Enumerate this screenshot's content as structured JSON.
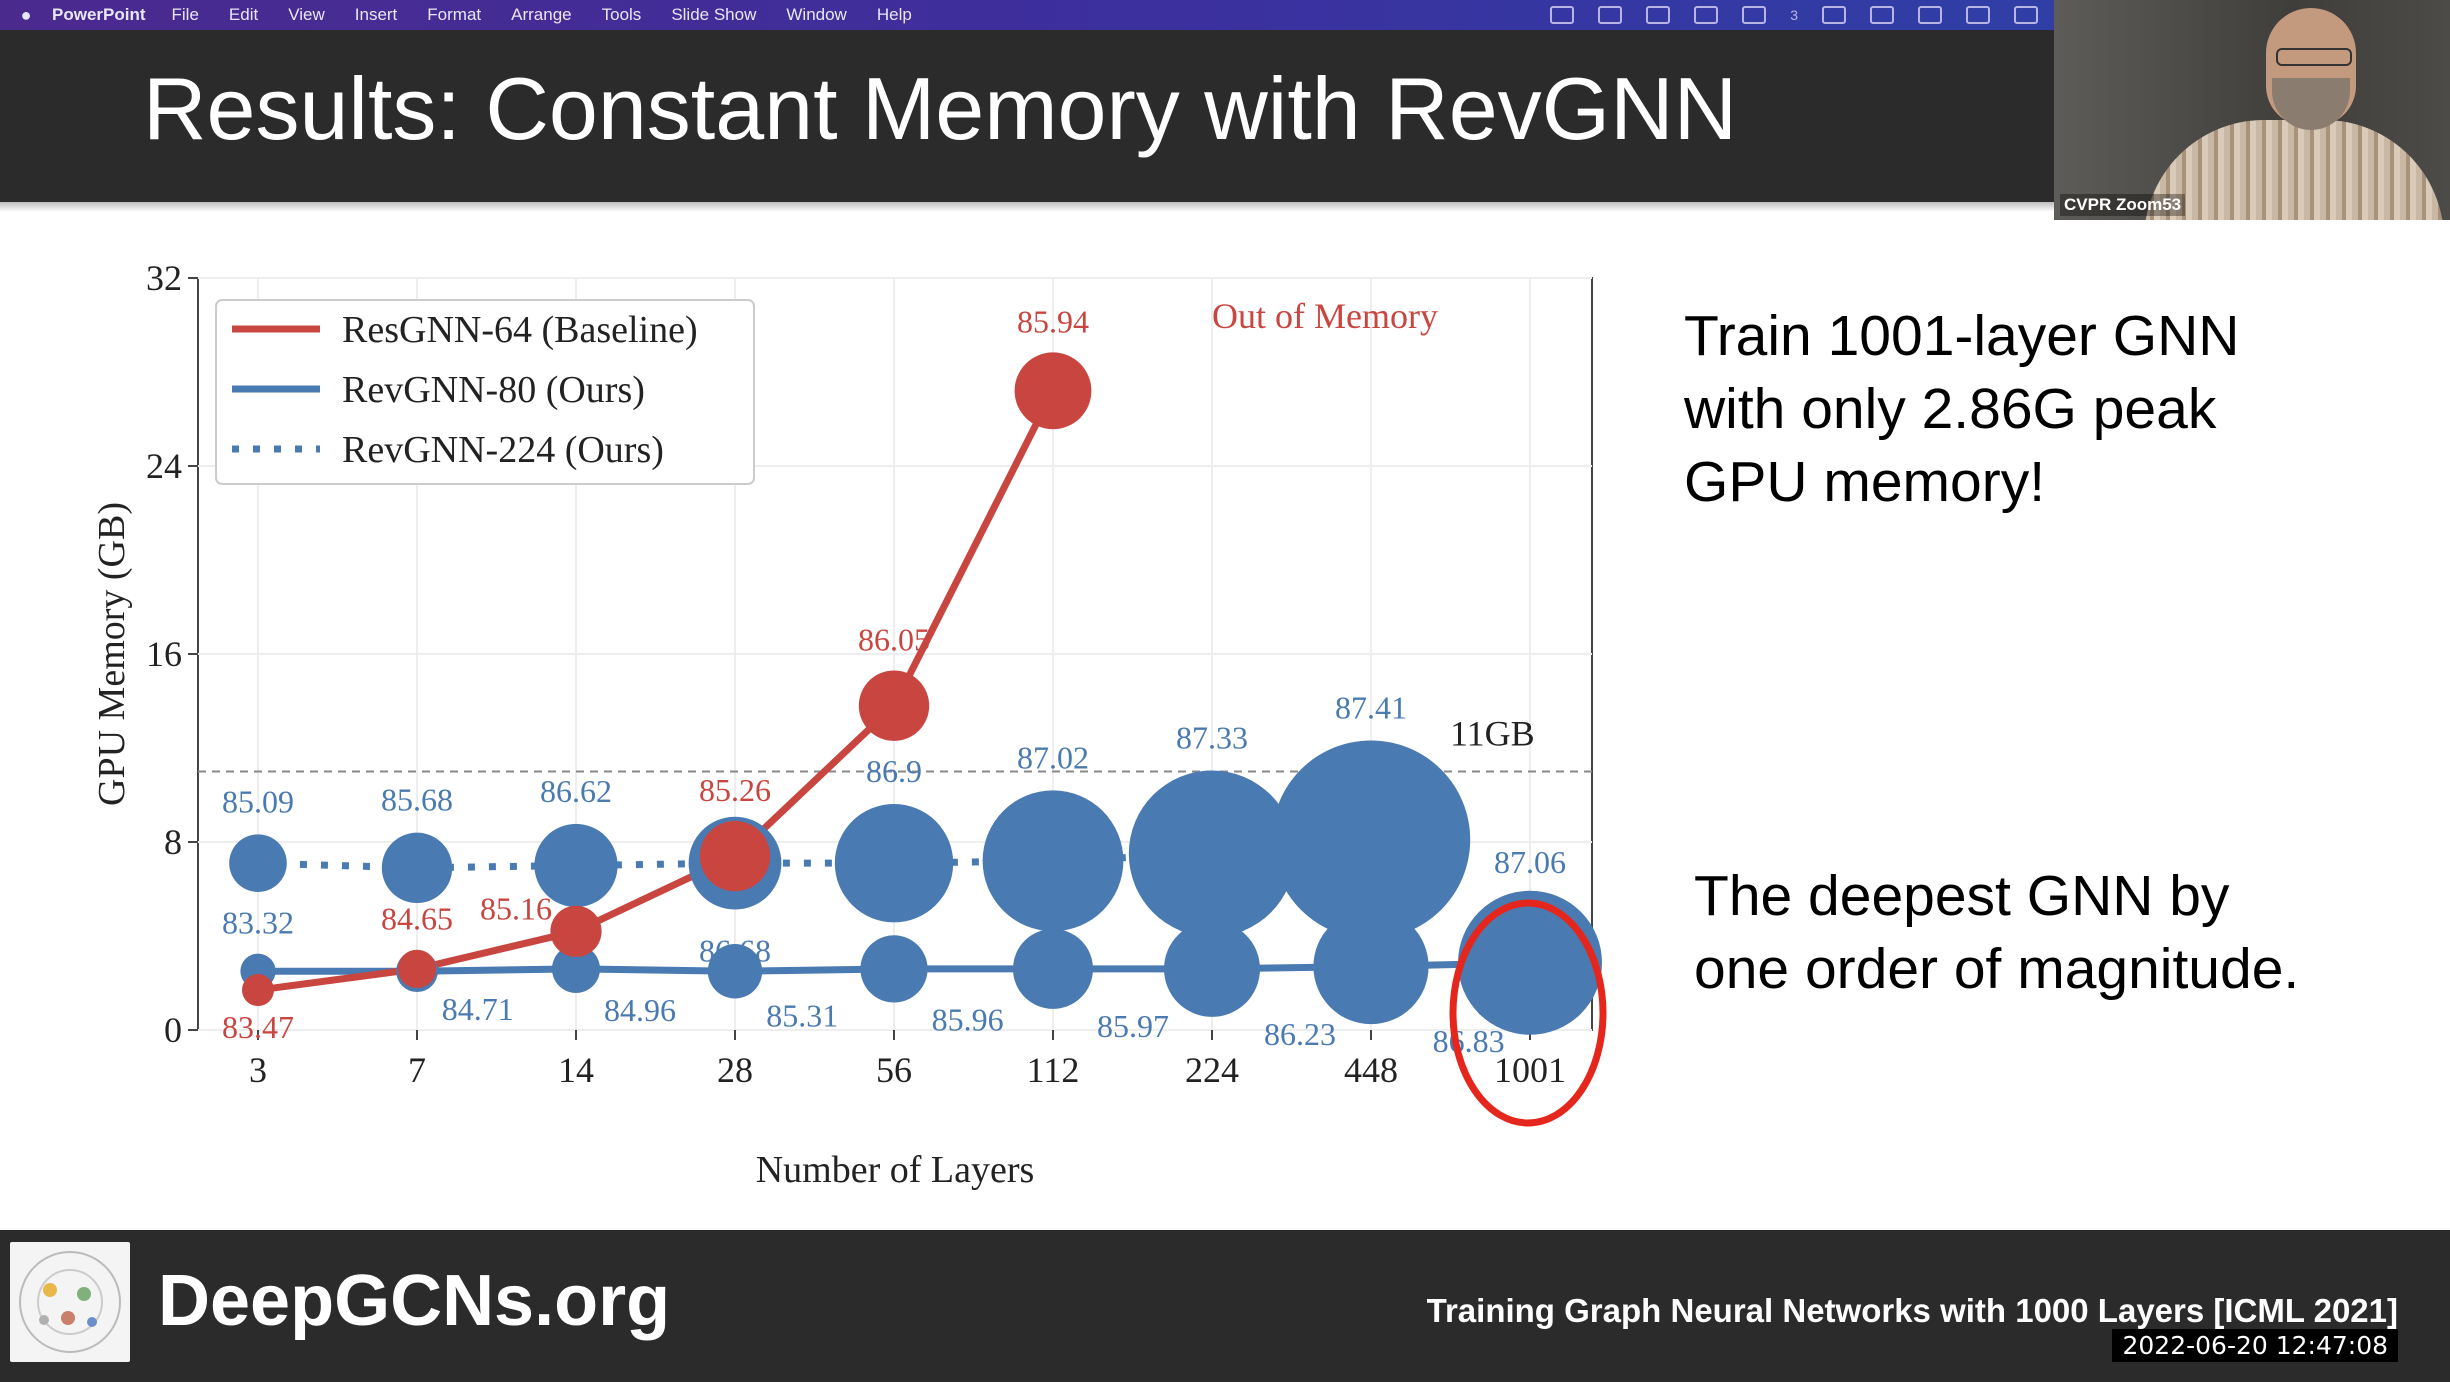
{
  "menu": {
    "apple_icon": "apple-logo-icon",
    "app_name": "PowerPoint",
    "items": [
      "File",
      "Edit",
      "View",
      "Insert",
      "Format",
      "Arrange",
      "Tools",
      "Slide Show",
      "Window",
      "Help"
    ],
    "notification_count": "3"
  },
  "slide": {
    "title": "Results: Constant Memory with RevGNN",
    "right_text_1": [
      "Train 1001-layer GNN",
      "with only 2.86G peak",
      "GPU memory!"
    ],
    "right_text_2": [
      "The deepest GNN by",
      "one order of magnitude."
    ]
  },
  "zoom": {
    "participant": "CVPR Zoom53"
  },
  "footer": {
    "site": "DeepGCNs.org",
    "reference": "Training Graph Neural Networks with 1000 Layers [ICML 2021]",
    "timestamp": "2022-06-20  12:47:08"
  },
  "chart_data": {
    "type": "scatter",
    "xlabel": "Number of Layers",
    "ylabel": "GPU Memory (GB)",
    "ylim": [
      0,
      32
    ],
    "yticks": [
      0,
      8,
      16,
      24,
      32
    ],
    "categories": [
      "3",
      "7",
      "14",
      "28",
      "56",
      "112",
      "224",
      "448",
      "1001"
    ],
    "reference_line": {
      "value": 11,
      "label": "11GB"
    },
    "oom_label": "Out of Memory",
    "colors": {
      "red": "#c8463f",
      "blue": "#4a7ab2",
      "highlight": "#e5261c"
    },
    "legend": [
      "ResGNN-64 (Baseline)",
      "RevGNN-80 (Ours)",
      "RevGNN-224 (Ours)"
    ],
    "series": [
      {
        "name": "ResGNN-64 (Baseline)",
        "style": "solid",
        "color": "red",
        "x_index": [
          0,
          1,
          2,
          3,
          4,
          5
        ],
        "memory": [
          1.7,
          2.6,
          4.2,
          7.4,
          13.8,
          27.2
        ],
        "accuracy": [
          "83.47",
          "84.65",
          "85.16",
          "85.26",
          "86.05",
          "85.94"
        ],
        "size": [
          1,
          1.2,
          1.6,
          2.2,
          2.2,
          2.4
        ]
      },
      {
        "name": "RevGNN-80 (Ours)",
        "style": "solid",
        "color": "blue",
        "x_index": [
          0,
          1,
          2,
          3,
          4,
          5,
          6,
          7,
          8
        ],
        "memory": [
          2.5,
          2.5,
          2.6,
          2.5,
          2.6,
          2.6,
          2.6,
          2.7,
          2.86
        ],
        "accuracy": [
          "83.32",
          "84.71",
          "84.96",
          "85.31",
          "85.96",
          "85.97",
          "86.23",
          "86.83",
          "87.06"
        ],
        "size": [
          1.1,
          1.3,
          1.5,
          1.7,
          2.1,
          2.5,
          3.0,
          3.6,
          4.5
        ]
      },
      {
        "name": "RevGNN-224 (Ours)",
        "style": "dotted",
        "color": "blue",
        "x_index": [
          0,
          1,
          2,
          3,
          4,
          5,
          6,
          7
        ],
        "memory": [
          7.1,
          6.9,
          7.0,
          7.1,
          7.1,
          7.2,
          7.5,
          8.1
        ],
        "accuracy": [
          "85.09",
          "85.68",
          "86.62",
          "86.68",
          "86.9",
          "87.02",
          "87.33",
          "87.41"
        ],
        "size": [
          1.8,
          2.2,
          2.6,
          2.9,
          3.7,
          4.4,
          5.2,
          6.2
        ]
      }
    ]
  }
}
